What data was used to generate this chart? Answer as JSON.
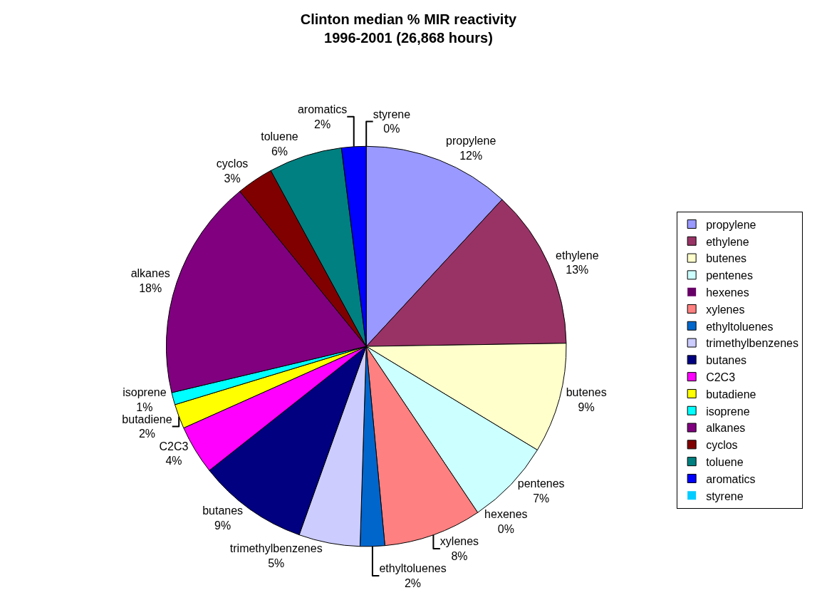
{
  "chart_data": {
    "type": "pie",
    "title": "Clinton median % MIR reactivity\n1996-2001 (26,868 hours)",
    "categories": [
      "propylene",
      "ethylene",
      "butenes",
      "pentenes",
      "hexenes",
      "xylenes",
      "ethyltoluenes",
      "trimethylbenzenes",
      "butanes",
      "C2C3",
      "butadiene",
      "isoprene",
      "alkanes",
      "cyclos",
      "toluene",
      "aromatics",
      "styrene"
    ],
    "values": [
      12,
      13,
      9,
      7,
      0,
      8,
      2,
      5,
      9,
      4,
      2,
      1,
      18,
      3,
      6,
      2,
      0
    ],
    "value_labels": [
      "12%",
      "13%",
      "9%",
      "7%",
      "0%",
      "8%",
      "2%",
      "5%",
      "9%",
      "4%",
      "2%",
      "1%",
      "18%",
      "3%",
      "6%",
      "2%",
      "0%"
    ],
    "colors": [
      "#9999ff",
      "#993366",
      "#ffffcc",
      "#ccffff",
      "#660066",
      "#ff8080",
      "#0066cc",
      "#ccccff",
      "#000080",
      "#ff00ff",
      "#ffff00",
      "#00ffff",
      "#800080",
      "#800000",
      "#008080",
      "#0000ff",
      "#00ccff"
    ],
    "legend": "right"
  }
}
